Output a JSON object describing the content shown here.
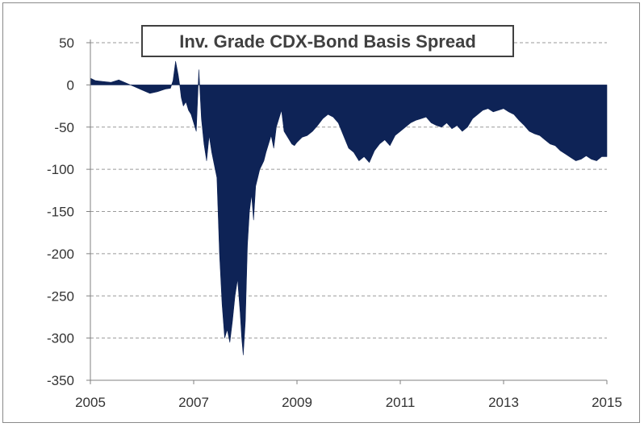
{
  "chart_data": {
    "type": "area",
    "title": "Inv. Grade CDX-Bond Basis Spread",
    "xlabel": "",
    "ylabel": "",
    "xlim": [
      2005,
      2015
    ],
    "ylim": [
      -350,
      50
    ],
    "yticks": [
      "50",
      "0",
      "-50",
      "-100",
      "-150",
      "-200",
      "-250",
      "-300",
      "-350"
    ],
    "xticks": [
      "2005",
      "2007",
      "2009",
      "2011",
      "2013",
      "2015"
    ],
    "grid": "horizontal dashed",
    "legend": "none",
    "fill_color": "#0e2356",
    "series": [
      {
        "x": [
          2005.0,
          2005.1,
          2005.25,
          2005.4,
          2005.55,
          2005.7,
          2005.85,
          2006.0,
          2006.15,
          2006.3,
          2006.45,
          2006.55,
          2006.6,
          2006.65,
          2006.7,
          2006.73,
          2006.76,
          2006.8,
          2006.85,
          2006.9,
          2006.95,
          2007.0,
          2007.05,
          2007.1,
          2007.15,
          2007.2,
          2007.25,
          2007.3,
          2007.35,
          2007.4,
          2007.45,
          2007.5,
          2007.55,
          2007.6,
          2007.65,
          2007.7,
          2007.75,
          2007.8,
          2007.85,
          2007.9,
          2007.93,
          2007.96,
          2008.0,
          2008.04,
          2008.08,
          2008.12,
          2008.16,
          2008.2,
          2008.24,
          2008.28,
          2008.32,
          2008.36,
          2008.4,
          2008.45,
          2008.5,
          2008.55,
          2008.6,
          2008.65,
          2008.7,
          2008.75,
          2008.8,
          2008.85,
          2008.9,
          2008.95,
          2009.0,
          2009.1,
          2009.2,
          2009.3,
          2009.4,
          2009.5,
          2009.6,
          2009.7,
          2009.8,
          2009.9,
          2010.0,
          2010.1,
          2010.2,
          2010.3,
          2010.4,
          2010.5,
          2010.6,
          2010.7,
          2010.8,
          2010.9,
          2011.0,
          2011.1,
          2011.2,
          2011.3,
          2011.4,
          2011.5,
          2011.6,
          2011.7,
          2011.8,
          2011.9,
          2012.0,
          2012.1,
          2012.2,
          2012.3,
          2012.4,
          2012.5,
          2012.6,
          2012.7,
          2012.8,
          2012.9,
          2013.0,
          2013.1,
          2013.2,
          2013.3,
          2013.4,
          2013.5,
          2013.6,
          2013.7,
          2013.8,
          2013.9,
          2014.0,
          2014.1,
          2014.2,
          2014.3,
          2014.4,
          2014.5,
          2014.6,
          2014.7,
          2014.8,
          2014.9,
          2015.0
        ],
        "y": [
          8,
          5,
          4,
          3,
          6,
          2,
          -2,
          -6,
          -10,
          -8,
          -5,
          -4,
          5,
          28,
          12,
          0,
          -15,
          -25,
          -20,
          -30,
          -35,
          -45,
          -55,
          18,
          -40,
          -70,
          -90,
          -60,
          -80,
          -95,
          -110,
          -200,
          -260,
          -300,
          -290,
          -305,
          -280,
          -250,
          -230,
          -270,
          -300,
          -320,
          -280,
          -190,
          -150,
          -130,
          -160,
          -120,
          -110,
          -100,
          -95,
          -90,
          -80,
          -70,
          -60,
          -75,
          -50,
          -40,
          -30,
          -55,
          -60,
          -65,
          -70,
          -72,
          -68,
          -62,
          -60,
          -55,
          -48,
          -40,
          -35,
          -38,
          -45,
          -60,
          -75,
          -80,
          -90,
          -85,
          -92,
          -78,
          -70,
          -65,
          -72,
          -60,
          -55,
          -50,
          -45,
          -42,
          -40,
          -38,
          -45,
          -48,
          -50,
          -45,
          -52,
          -48,
          -55,
          -50,
          -40,
          -35,
          -30,
          -28,
          -32,
          -30,
          -28,
          -32,
          -35,
          -42,
          -48,
          -55,
          -58,
          -60,
          -65,
          -70,
          -72,
          -78,
          -82,
          -86,
          -90,
          -88,
          -84,
          -88,
          -90,
          -85,
          -85
        ]
      }
    ]
  }
}
